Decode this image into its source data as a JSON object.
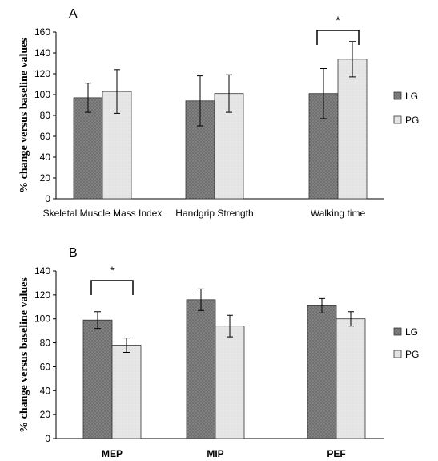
{
  "colors": {
    "LG": "#707070",
    "PG": "#e6e6e6",
    "axis": "#000000"
  },
  "chart_data": [
    {
      "type": "bar",
      "panel_label": "A",
      "categories": [
        "Skeletal Muscle Mass Index",
        "Handgrip Strength",
        "Walking time"
      ],
      "series": [
        {
          "name": "LG",
          "values": [
            97,
            94,
            101
          ],
          "errors": [
            14,
            24,
            24
          ]
        },
        {
          "name": "PG",
          "values": [
            103,
            101,
            134
          ],
          "errors": [
            21,
            18,
            17
          ]
        }
      ],
      "ylabel": "% change versus baseline values",
      "ylim": [
        0,
        160
      ],
      "yticks": [
        0,
        20,
        40,
        60,
        80,
        100,
        120,
        140,
        160
      ],
      "category_label_style": "normal",
      "significance": [
        {
          "category_index": 2,
          "label": "*"
        }
      ],
      "legend": "right",
      "grid": false
    },
    {
      "type": "bar",
      "panel_label": "B",
      "categories": [
        "MEP",
        "MIP",
        "PEF"
      ],
      "series": [
        {
          "name": "LG",
          "values": [
            99,
            116,
            111
          ],
          "errors": [
            7,
            9,
            6
          ]
        },
        {
          "name": "PG",
          "values": [
            78,
            94,
            100
          ],
          "errors": [
            6,
            9,
            6
          ]
        }
      ],
      "ylabel": "% change versus baseline values",
      "ylim": [
        0,
        140
      ],
      "yticks": [
        0,
        20,
        40,
        60,
        80,
        100,
        120,
        140
      ],
      "category_label_style": "bold",
      "significance": [
        {
          "category_index": 0,
          "label": "*"
        }
      ],
      "legend": "right",
      "grid": false
    }
  ]
}
